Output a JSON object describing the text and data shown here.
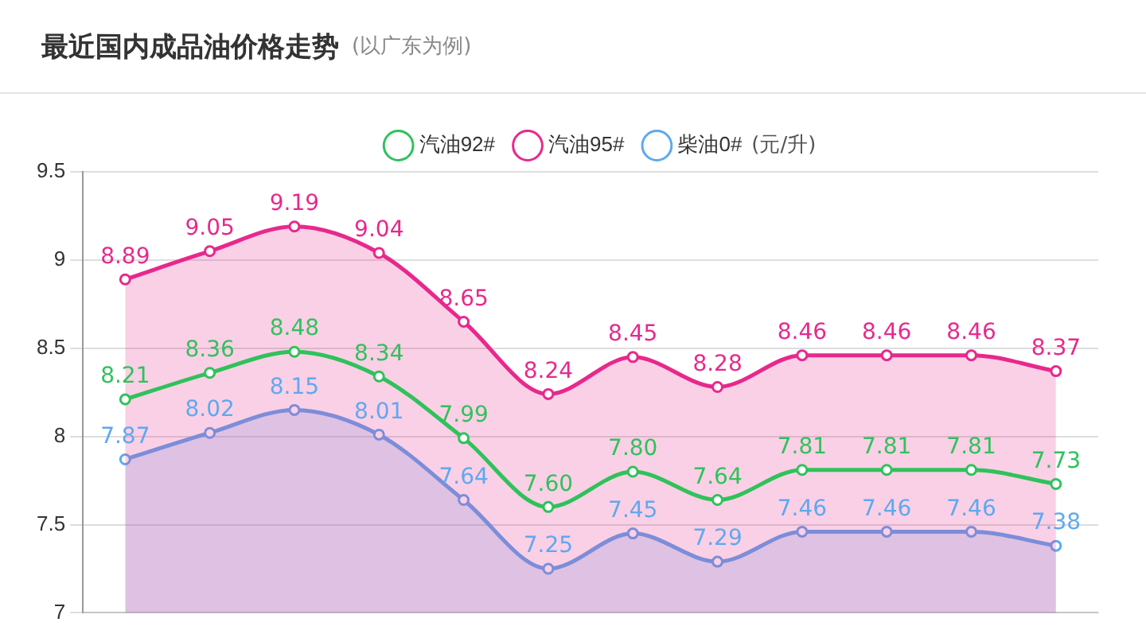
{
  "chart_data": {
    "type": "line",
    "title": "最近国内成品油价格走势",
    "subtitle": "(以广东为例)",
    "ylabel": "(元/升)",
    "categories": [
      null,
      null,
      null,
      null,
      null,
      null,
      null,
      null,
      null,
      null,
      null,
      null
    ],
    "series": [
      {
        "name": "汽油92#",
        "type": "line",
        "color": "#2fc25b",
        "values": [
          8.21,
          8.36,
          8.48,
          8.34,
          7.99,
          7.6,
          7.8,
          7.64,
          7.81,
          7.81,
          7.81,
          7.73
        ],
        "value_labels": [
          "8.21",
          "8.36",
          "8.48",
          "8.34",
          "7.99",
          "7.60",
          "7.80",
          "7.64",
          "7.81",
          "7.81",
          "7.81",
          "7.73"
        ]
      },
      {
        "name": "汽油95#",
        "type": "area",
        "color": "#e8288c",
        "values": [
          8.89,
          9.05,
          9.19,
          9.04,
          8.65,
          8.24,
          8.45,
          8.28,
          8.46,
          8.46,
          8.46,
          8.37
        ],
        "value_labels": [
          "8.89",
          "9.05",
          "9.19",
          "9.04",
          "8.65",
          "8.24",
          "8.45",
          "8.28",
          "8.46",
          "8.46",
          "8.46",
          "8.37"
        ]
      },
      {
        "name": "柴油0#",
        "type": "area",
        "color": "#5ea9ef",
        "values": [
          7.87,
          8.02,
          8.15,
          8.01,
          7.64,
          7.25,
          7.45,
          7.29,
          7.46,
          7.46,
          7.46,
          7.38
        ],
        "value_labels": [
          "7.87",
          "8.02",
          "8.15",
          "8.01",
          "7.64",
          "7.25",
          "7.45",
          "7.29",
          "7.46",
          "7.46",
          "7.46",
          "7.38"
        ]
      }
    ],
    "ylim": [
      7,
      9.5
    ],
    "yticks": [
      7,
      7.5,
      8,
      8.5,
      9,
      9.5
    ],
    "grid": "y",
    "legend": "top",
    "marker": "circle",
    "tick_labels": "y"
  }
}
